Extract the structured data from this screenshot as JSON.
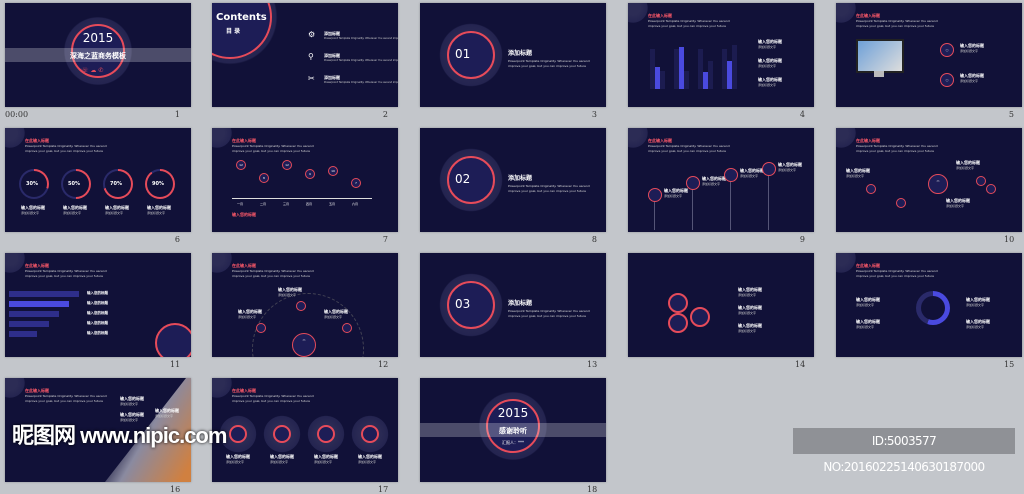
{
  "timestamp": "00:00",
  "common": {
    "heading": "在此输入标题",
    "desc": "Powerpoint Template Originality. Wherever You ascend improve your goal, but you can improve your future",
    "label": "输入您的标题",
    "small": "添加标题文字"
  },
  "slides": [
    {
      "num": "1",
      "kind": "title",
      "year": "2015",
      "title": "深海之蓝商务模板"
    },
    {
      "num": "2",
      "kind": "contents",
      "title": "Contents",
      "subtitle": "目 录",
      "items": [
        "添加标题",
        "添加标题",
        "添加标题"
      ]
    },
    {
      "num": "3",
      "kind": "section",
      "index": "01",
      "title": "添加标题"
    },
    {
      "num": "4",
      "kind": "bars"
    },
    {
      "num": "5",
      "kind": "monitor"
    },
    {
      "num": "6",
      "kind": "rings",
      "values": [
        "30%",
        "50%",
        "70%",
        "90%"
      ],
      "fractions": [
        0.3,
        0.5,
        0.7,
        0.9
      ]
    },
    {
      "num": "7",
      "kind": "line",
      "months": [
        "一月",
        "二月",
        "三月",
        "四月",
        "五月",
        "六月"
      ],
      "points": [
        "12",
        "8",
        "12",
        "9",
        "10",
        "7"
      ]
    },
    {
      "num": "8",
      "kind": "section",
      "index": "02",
      "title": "添加标题"
    },
    {
      "num": "9",
      "kind": "pins"
    },
    {
      "num": "10",
      "kind": "network"
    },
    {
      "num": "11",
      "kind": "hbars"
    },
    {
      "num": "12",
      "kind": "arc"
    },
    {
      "num": "13",
      "kind": "section",
      "index": "03",
      "title": "添加标题"
    },
    {
      "num": "14",
      "kind": "circles"
    },
    {
      "num": "15",
      "kind": "donut"
    },
    {
      "num": "16",
      "kind": "photo"
    },
    {
      "num": "17",
      "kind": "four"
    },
    {
      "num": "18",
      "kind": "title",
      "year": "2015",
      "title": "感谢聆听",
      "presenter": "汇报人：***"
    }
  ],
  "watermark": "昵图网 www.nipic.com",
  "id_text": "ID:5003577 NO:20160225140630187000",
  "colors": {
    "slide_bg": "#111138",
    "accent": "#e64b5a",
    "bar": "#4a4adf"
  }
}
